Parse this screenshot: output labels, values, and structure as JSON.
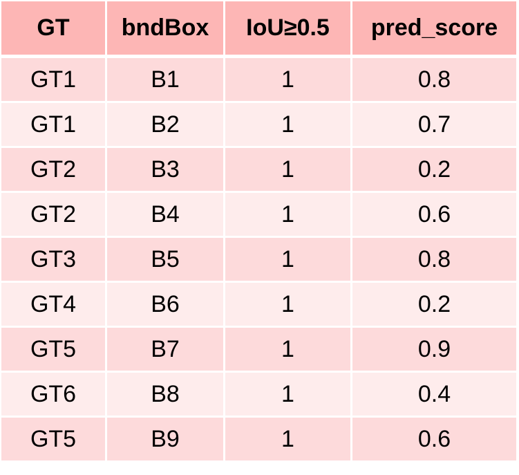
{
  "table": {
    "headers": [
      "GT",
      "bndBox",
      "IoU≥0.5",
      "pred_score"
    ],
    "rows": [
      [
        "GT1",
        "B1",
        "1",
        "0.8"
      ],
      [
        "GT1",
        "B2",
        "1",
        "0.7"
      ],
      [
        "GT2",
        "B3",
        "1",
        "0.2"
      ],
      [
        "GT2",
        "B4",
        "1",
        "0.6"
      ],
      [
        "GT3",
        "B5",
        "1",
        "0.8"
      ],
      [
        "GT4",
        "B6",
        "1",
        "0.2"
      ],
      [
        "GT5",
        "B7",
        "1",
        "0.9"
      ],
      [
        "GT6",
        "B8",
        "1",
        "0.4"
      ],
      [
        "GT5",
        "B9",
        "1",
        "0.6"
      ]
    ]
  },
  "colors": {
    "header_bg": "#fdb6b5",
    "row_odd_bg": "#fddadb",
    "row_even_bg": "#feecec",
    "grid_line": "#ffffff"
  }
}
